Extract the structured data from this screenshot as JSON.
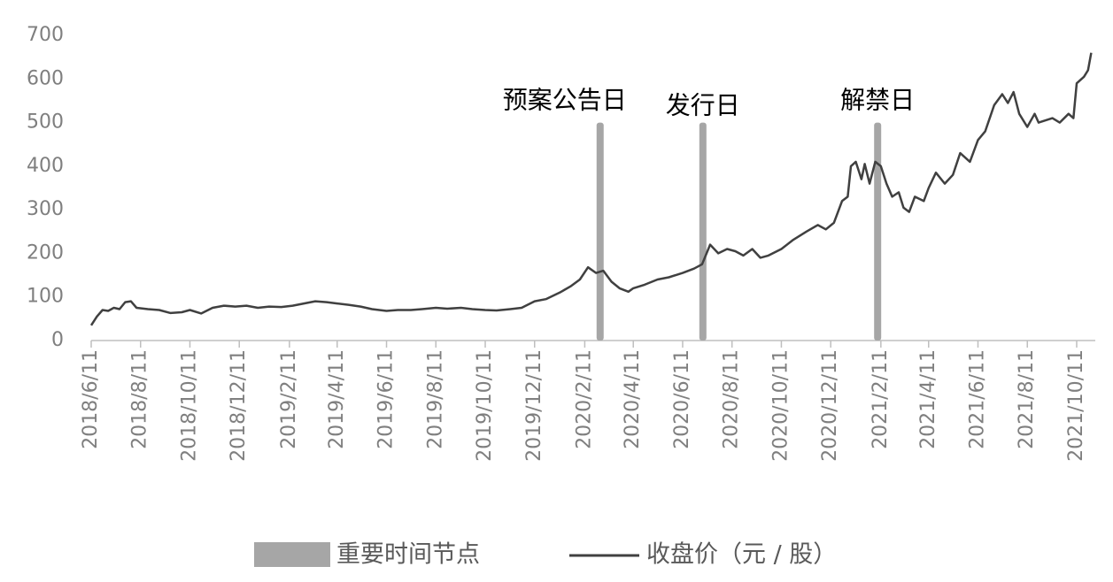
{
  "chart_data": {
    "type": "line",
    "x": [
      "2018/6/11",
      "2018/6/18",
      "2018/6/25",
      "2018/7/2",
      "2018/7/9",
      "2018/7/16",
      "2018/7/23",
      "2018/7/30",
      "2018/8/6",
      "2018/8/20",
      "2018/9/3",
      "2018/9/17",
      "2018/10/1",
      "2018/10/11",
      "2018/10/25",
      "2018/11/8",
      "2018/11/22",
      "2018/12/6",
      "2018/12/20",
      "2019/1/3",
      "2019/1/17",
      "2019/2/1",
      "2019/2/15",
      "2019/3/1",
      "2019/3/15",
      "2019/3/29",
      "2019/4/11",
      "2019/4/25",
      "2019/5/10",
      "2019/5/24",
      "2019/6/11",
      "2019/6/25",
      "2019/7/11",
      "2019/7/25",
      "2019/8/11",
      "2019/8/25",
      "2019/9/11",
      "2019/9/25",
      "2019/10/11",
      "2019/10/25",
      "2019/11/11",
      "2019/11/25",
      "2019/12/11",
      "2019/12/25",
      "2020/1/11",
      "2020/1/25",
      "2020/2/5",
      "2020/2/15",
      "2020/2/25",
      "2020/3/5",
      "2020/3/15",
      "2020/3/25",
      "2020/4/5",
      "2020/4/11",
      "2020/4/25",
      "2020/5/11",
      "2020/5/25",
      "2020/6/11",
      "2020/6/25",
      "2020/7/5",
      "2020/7/15",
      "2020/7/25",
      "2020/8/5",
      "2020/8/15",
      "2020/8/25",
      "2020/9/5",
      "2020/9/15",
      "2020/9/25",
      "2020/10/11",
      "2020/10/25",
      "2020/11/11",
      "2020/11/25",
      "2020/12/5",
      "2020/12/15",
      "2020/12/25",
      "2021/1/1",
      "2021/1/5",
      "2021/1/11",
      "2021/1/18",
      "2021/1/22",
      "2021/1/28",
      "2021/2/4",
      "2021/2/11",
      "2021/2/18",
      "2021/2/25",
      "2021/3/5",
      "2021/3/11",
      "2021/3/18",
      "2021/3/25",
      "2021/4/5",
      "2021/4/11",
      "2021/4/20",
      "2021/5/1",
      "2021/5/11",
      "2021/5/20",
      "2021/6/1",
      "2021/6/11",
      "2021/6/20",
      "2021/7/1",
      "2021/7/11",
      "2021/7/18",
      "2021/7/25",
      "2021/8/1",
      "2021/8/11",
      "2021/8/20",
      "2021/8/25",
      "2021/9/11",
      "2021/9/20",
      "2021/10/1",
      "2021/10/7",
      "2021/10/11",
      "2021/10/20",
      "2021/10/25",
      "2021/10/29"
    ],
    "series": [
      {
        "name": "收盘价（元 / 股）",
        "color": "#404040",
        "values": [
          35,
          55,
          70,
          68,
          75,
          72,
          88,
          90,
          75,
          72,
          70,
          63,
          65,
          70,
          62,
          75,
          80,
          78,
          80,
          75,
          78,
          77,
          80,
          85,
          90,
          88,
          85,
          82,
          78,
          72,
          68,
          70,
          70,
          72,
          75,
          73,
          75,
          72,
          70,
          69,
          72,
          75,
          90,
          95,
          110,
          125,
          140,
          168,
          155,
          160,
          135,
          120,
          112,
          120,
          128,
          140,
          145,
          155,
          165,
          175,
          220,
          200,
          210,
          205,
          195,
          210,
          190,
          195,
          210,
          230,
          250,
          265,
          255,
          270,
          320,
          330,
          400,
          410,
          370,
          405,
          360,
          410,
          400,
          360,
          330,
          340,
          305,
          295,
          330,
          320,
          350,
          385,
          360,
          380,
          430,
          410,
          460,
          480,
          540,
          565,
          545,
          570,
          520,
          490,
          520,
          500,
          510,
          500,
          520,
          510,
          590,
          605,
          620,
          660
        ]
      }
    ],
    "events": {
      "name": "重要时间节点",
      "color": "#a6a6a6",
      "x": [
        "2020/3/1",
        "2020/7/6",
        "2021/2/7"
      ],
      "values": [
        500,
        500,
        500
      ],
      "labels": [
        "预案公告日",
        "发行日",
        "解禁日"
      ]
    },
    "xlim": [
      "2018/6/11",
      "2021/11/3"
    ],
    "xticks": [
      "2018/6/11",
      "2018/8/11",
      "2018/10/11",
      "2018/12/11",
      "2019/2/11",
      "2019/4/11",
      "2019/6/11",
      "2019/8/11",
      "2019/10/11",
      "2019/12/11",
      "2020/2/11",
      "2020/4/11",
      "2020/6/11",
      "2020/8/11",
      "2020/10/11",
      "2020/12/11",
      "2021/2/11",
      "2021/4/11",
      "2021/6/11",
      "2021/8/11",
      "2021/10/11"
    ],
    "ylim": [
      0,
      700
    ],
    "yticks": [
      0,
      100,
      200,
      300,
      400,
      500,
      600,
      700
    ],
    "grid": false
  }
}
